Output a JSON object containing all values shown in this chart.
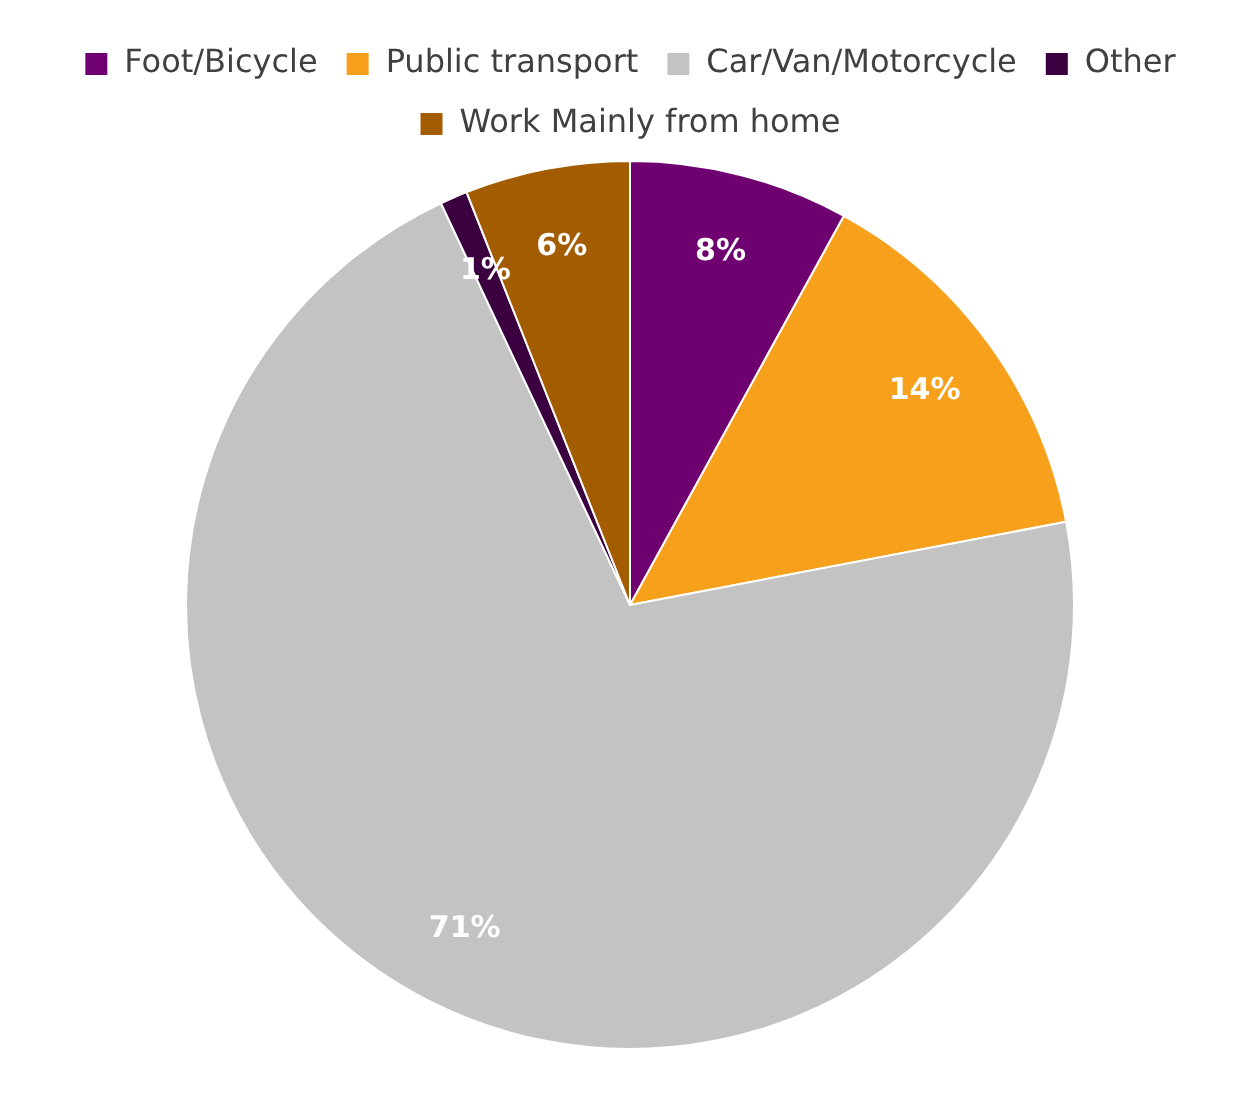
{
  "chart_data": {
    "type": "pie",
    "categories": [
      "Foot/Bicycle",
      "Public transport",
      "Car/Van/Motorcycle",
      "Other",
      "Work Mainly from home"
    ],
    "values": [
      8,
      14,
      71,
      1,
      6
    ],
    "colors": [
      "#6e0070",
      "#f7a01c",
      "#c3c3c3",
      "#3a0040",
      "#a35d00"
    ],
    "value_labels": [
      "8%",
      "14%",
      "71%",
      "1%",
      "6%"
    ],
    "legend": "top"
  }
}
